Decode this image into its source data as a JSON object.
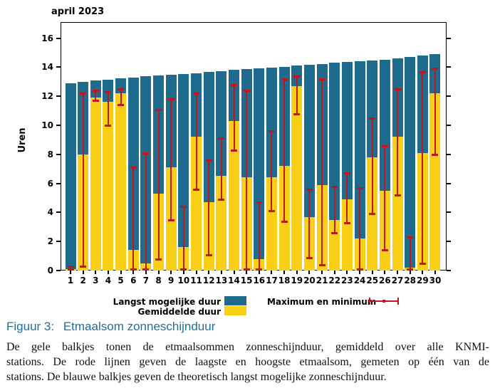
{
  "title": "april 2023",
  "ylabel": "Uren",
  "legend": {
    "blue_label": "Langst mogelijke duur",
    "yellow_label": "Gemiddelde duur",
    "red_label": "Maximum en minimum"
  },
  "caption": {
    "prefix": "Figuur 3:",
    "text": "Etmaalsom zonneschijnduur"
  },
  "description": {
    "lines": [
      "De gele balkjes tonen de etmaalsommen zonneschijnduur, gemiddeld over alle KNMI-",
      "stations.  De rode lijnen geven de laagste en hoogste etmaalsom, gemeten op één van de",
      "stations.  De blauwe balkjes geven de theoretisch langst mogelijke zonneschijnduur."
    ]
  },
  "colors": {
    "blue": "#1f6b8e",
    "yellow": "#f9d016",
    "red": "#c0161d",
    "caption_blue": "#1f6f9c",
    "axis": "#000000"
  },
  "chart_data": {
    "type": "bar",
    "title": "april 2023",
    "xlabel": "",
    "ylabel": "Uren",
    "ylim": [
      0,
      16
    ],
    "yticks": [
      0,
      2,
      4,
      6,
      8,
      10,
      12,
      14,
      16
    ],
    "grid": false,
    "legend_position": "bottom",
    "categories": [
      1,
      2,
      3,
      4,
      5,
      6,
      7,
      8,
      9,
      10,
      11,
      12,
      13,
      14,
      15,
      16,
      17,
      18,
      19,
      20,
      21,
      22,
      23,
      24,
      25,
      26,
      27,
      28,
      29,
      30
    ],
    "series": [
      {
        "name": "Langst mogelijke duur",
        "type": "bar",
        "color": "#1f6b8e",
        "values": [
          12.9,
          13.0,
          13.1,
          13.15,
          13.25,
          13.3,
          13.4,
          13.45,
          13.5,
          13.55,
          13.6,
          13.7,
          13.75,
          13.8,
          13.85,
          13.9,
          13.95,
          14.0,
          14.1,
          14.15,
          14.2,
          14.3,
          14.35,
          14.4,
          14.45,
          14.5,
          14.6,
          14.7,
          14.8,
          14.9
        ]
      },
      {
        "name": "Gemiddelde duur",
        "type": "bar",
        "color": "#f9d016",
        "values": [
          0.1,
          8.0,
          11.9,
          11.6,
          12.2,
          1.4,
          0.5,
          5.3,
          7.1,
          1.6,
          9.2,
          4.7,
          6.5,
          10.3,
          6.4,
          0.8,
          6.4,
          7.2,
          12.7,
          3.7,
          5.9,
          3.5,
          4.9,
          2.2,
          7.8,
          5.5,
          9.2,
          0.2,
          8.1,
          12.2
        ]
      },
      {
        "name": "Maximum en minimum",
        "type": "errorbar",
        "color": "#c0161d",
        "min": [
          0.0,
          0.3,
          11.7,
          10.0,
          11.4,
          0.0,
          0.0,
          0.8,
          3.5,
          0.0,
          5.6,
          1.1,
          4.9,
          8.3,
          0.0,
          0.0,
          4.1,
          3.4,
          10.8,
          0.9,
          0.4,
          2.6,
          3.3,
          0.1,
          3.9,
          1.4,
          5.2,
          0.0,
          0.5,
          8.0
        ],
        "max": [
          0.3,
          12.2,
          12.4,
          12.3,
          12.5,
          7.1,
          8.1,
          11.1,
          11.8,
          4.4,
          12.2,
          7.6,
          9.1,
          12.8,
          12.4,
          4.7,
          9.6,
          13.2,
          13.4,
          5.6,
          13.2,
          5.8,
          6.7,
          5.7,
          10.5,
          8.6,
          12.5,
          2.3,
          13.7,
          13.9
        ]
      }
    ]
  }
}
